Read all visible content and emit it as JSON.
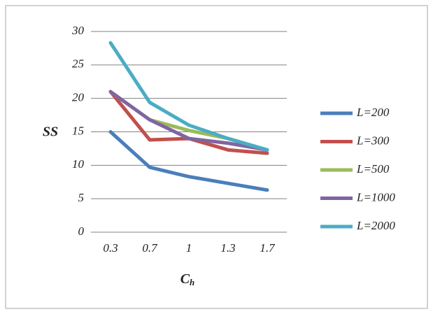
{
  "chart_data": {
    "type": "line",
    "y_label": "SS",
    "x_label": "C",
    "x_label_sub": "h",
    "categories": [
      "0.3",
      "0.7",
      "1",
      "1.3",
      "1.7"
    ],
    "ylim": [
      0,
      30
    ],
    "yticks": [
      0,
      5,
      10,
      15,
      20,
      25,
      30
    ],
    "grid": true,
    "legend": "right",
    "series": [
      {
        "name": "L=200",
        "color": "#4a7ebb",
        "values": [
          15,
          9.7,
          8.3,
          7.3,
          6.3
        ]
      },
      {
        "name": "L=300",
        "color": "#c0504d",
        "values": [
          21,
          13.8,
          14,
          12.3,
          11.8
        ]
      },
      {
        "name": "L=500",
        "color": "#9bbb59",
        "values": [
          21,
          16.8,
          15.2,
          14,
          12.3
        ]
      },
      {
        "name": "L=1000",
        "color": "#8064a2",
        "values": [
          21,
          16.8,
          14,
          13.3,
          12.3
        ]
      },
      {
        "name": "L=2000",
        "color": "#4bacc6",
        "values": [
          28.3,
          19.4,
          16,
          14,
          12.3
        ]
      }
    ]
  }
}
